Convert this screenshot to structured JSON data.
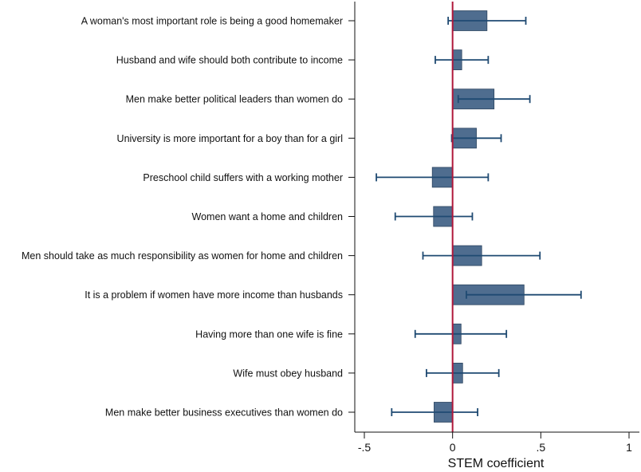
{
  "chart_data": {
    "type": "bar",
    "orientation": "horizontal",
    "xlabel": "STEM coefficient",
    "xlim": [
      -0.5,
      1
    ],
    "xticks": [
      -0.5,
      0,
      0.5,
      1
    ],
    "xtick_labels": [
      "-.5",
      "0",
      ".5",
      "1"
    ],
    "grid": false,
    "reference_line": {
      "x": 0,
      "color": "#b0173a"
    },
    "bar_color": "#4f6d8f",
    "error_bar_color": "#1f4a72",
    "categories": [
      "A woman's most important role is being a good homemaker",
      "Husband and wife should both contribute to income",
      "Men make better political leaders than women do",
      "University is more important for a boy than for a girl",
      "Preschool child suffers with a working mother",
      "Women want a home and children",
      "Men should take as much responsibility as women for home and children",
      "It is a problem if women have more income than husbands",
      "Having more than one wife is fine",
      "Wife must obey husband",
      "Men make better business executives than women do"
    ],
    "values": [
      0.195,
      0.052,
      0.235,
      0.135,
      -0.115,
      -0.108,
      0.165,
      0.405,
      0.048,
      0.057,
      -0.105
    ],
    "ci_low": [
      -0.025,
      -0.098,
      0.032,
      -0.005,
      -0.432,
      -0.325,
      -0.168,
      0.078,
      -0.212,
      -0.148,
      -0.345
    ],
    "ci_high": [
      0.415,
      0.202,
      0.438,
      0.275,
      0.202,
      0.112,
      0.495,
      0.728,
      0.305,
      0.262,
      0.142
    ]
  }
}
